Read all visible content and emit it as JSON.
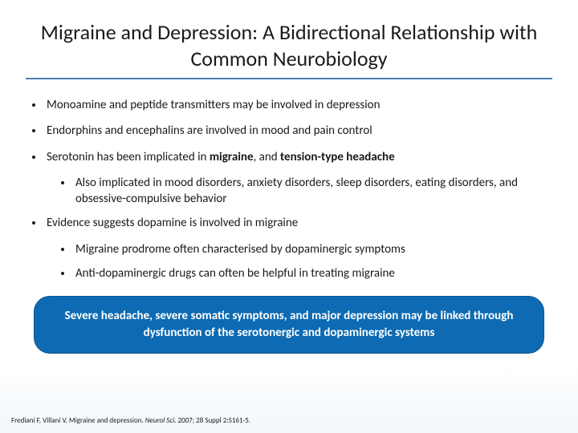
{
  "title": "Migraine and Depression: A Bidirectional Relationship with Common Neurobiology",
  "bullets": [
    {
      "text": "Monoamine and peptide transmitters may be involved in depression",
      "subs": []
    },
    {
      "text": "Endorphins and encephalins are involved in mood and pain control",
      "subs": []
    },
    {
      "html": "Serotonin has been implicated in <span class='bold'>migraine</span>, and <span class='bold'>tension-type headache</span>",
      "subs": [
        {
          "text": "Also implicated in mood disorders, anxiety disorders, sleep disorders, eating disorders, and obsessive-compulsive behavior"
        }
      ]
    },
    {
      "text": "Evidence suggests dopamine is involved in migraine",
      "subs": [
        {
          "text": "Migraine prodrome often characterised by dopaminergic symptoms"
        },
        {
          "text": "Anti-dopaminergic drugs can often be helpful in treating migraine"
        }
      ]
    }
  ],
  "callout": "Severe headache, severe somatic symptoms, and major depression may be linked through dysfunction of the serotonergic and dopaminergic systems",
  "citation": {
    "authors": "Frediani F, Villani V. Migraine and depression.",
    "journal": "Neurol Sci.",
    "details": " 2007; 28 Suppl 2:S161-5."
  },
  "colors": {
    "title_rule": "#4a7fb5",
    "callout_bg": "#0e6bb3",
    "callout_border": "#0a5490",
    "text": "#1a1a1a",
    "background": "#ffffff"
  },
  "fontsizes": {
    "title": 26,
    "body": 15,
    "callout": 15,
    "citation": 9
  }
}
